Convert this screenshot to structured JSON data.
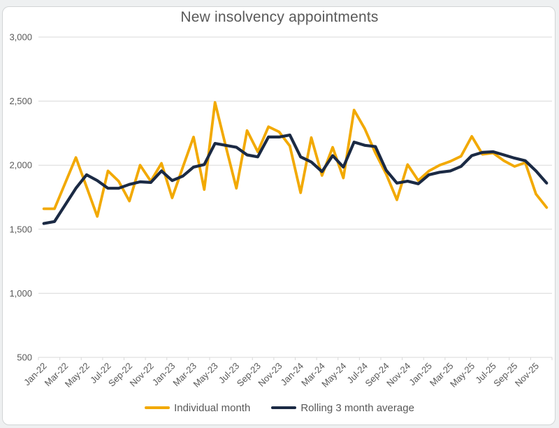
{
  "chart_data": {
    "type": "line",
    "title": "New insolvency appointments",
    "xlabel": "",
    "ylabel": "",
    "ylim": [
      500,
      3000
    ],
    "y_ticks": [
      500,
      1000,
      1500,
      2000,
      2500,
      3000
    ],
    "grid": true,
    "legend_position": "bottom",
    "x_label_interval": 2,
    "x": [
      "Jan-22",
      "Feb-22",
      "Mar-22",
      "Apr-22",
      "May-22",
      "Jun-22",
      "Jul-22",
      "Aug-22",
      "Sep-22",
      "Oct-22",
      "Nov-22",
      "Dec-22",
      "Jan-23",
      "Feb-23",
      "Mar-23",
      "Apr-23",
      "May-23",
      "Jun-23",
      "Jul-23",
      "Aug-23",
      "Sep-23",
      "Oct-23",
      "Nov-23",
      "Dec-23",
      "Jan-24",
      "Feb-24",
      "Mar-24",
      "Apr-24",
      "May-24",
      "Jun-24",
      "Jul-24",
      "Aug-24",
      "Sep-24",
      "Oct-24",
      "Nov-24",
      "Dec-24",
      "Jan-25",
      "Feb-25",
      "Mar-25",
      "Apr-25",
      "May-25",
      "Jun-25",
      "Jul-25",
      "Aug-25",
      "Sep-25",
      "Oct-25",
      "Nov-25",
      "Dec-25"
    ],
    "series": [
      {
        "name": "Individual month",
        "color": "#F2A900",
        "stroke_width": 3.8,
        "values": [
          1660,
          1660,
          1860,
          2060,
          1830,
          1600,
          1955,
          1875,
          1720,
          2000,
          1875,
          2015,
          1745,
          1985,
          2220,
          1810,
          2490,
          2150,
          1820,
          2270,
          2105,
          2300,
          2260,
          2150,
          1785,
          2215,
          1920,
          2140,
          1900,
          2430,
          2285,
          2095,
          1930,
          1730,
          2005,
          1880,
          1955,
          2000,
          2030,
          2070,
          2225,
          2085,
          2095,
          2035,
          1990,
          2020,
          1775,
          1670
        ]
      },
      {
        "name": "Rolling 3 month average",
        "color": "#1B2A44",
        "stroke_width": 4.2,
        "values": [
          1545,
          1560,
          1690,
          1820,
          1925,
          1880,
          1820,
          1820,
          1850,
          1870,
          1865,
          1955,
          1880,
          1915,
          1985,
          2005,
          2170,
          2155,
          2140,
          2080,
          2065,
          2220,
          2220,
          2235,
          2065,
          2025,
          1950,
          2075,
          1985,
          2180,
          2155,
          2145,
          1960,
          1860,
          1875,
          1855,
          1925,
          1945,
          1955,
          1990,
          2075,
          2100,
          2105,
          2080,
          2055,
          2035,
          1955,
          1860
        ]
      }
    ],
    "colors": {
      "text": "#595959",
      "gridline": "#d9d9d9",
      "axis_line": "#d9d9d9",
      "background": "#ffffff",
      "page_background": "#eef0f1"
    }
  }
}
